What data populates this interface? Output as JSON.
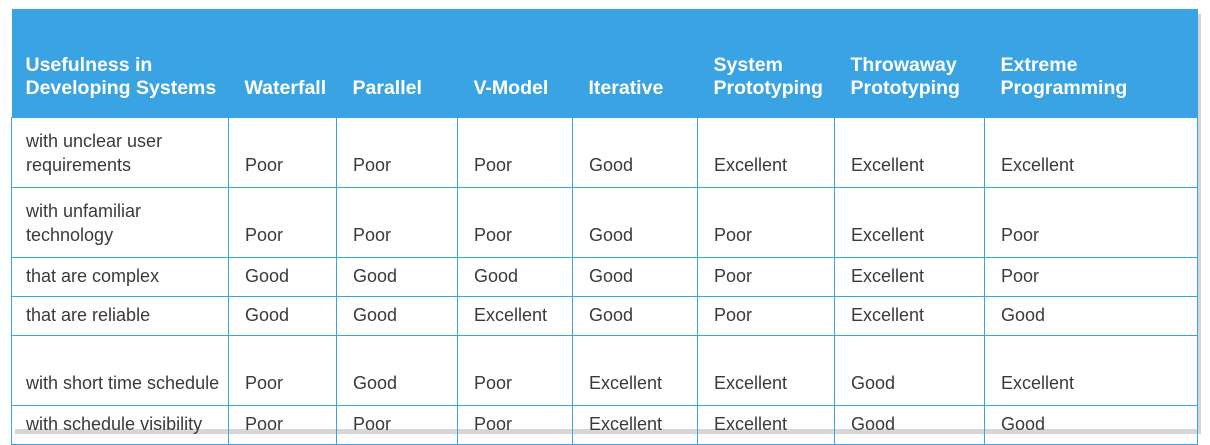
{
  "table": {
    "header": {
      "corner": "Usefulness in Developing Systems",
      "columns": [
        "Waterfall",
        "Parallel",
        "V-Model",
        "Iterative",
        "System Prototyping",
        "Throwaway Prototyping",
        "Extreme Programming"
      ]
    },
    "rows": [
      {
        "label": "with unclear user requirements",
        "values": [
          "Poor",
          "Poor",
          "Poor",
          "Good",
          "Excellent",
          "Excellent",
          "Excellent"
        ]
      },
      {
        "label": "with unfamiliar technology",
        "values": [
          "Poor",
          "Poor",
          "Poor",
          "Good",
          "Poor",
          "Excellent",
          "Poor"
        ]
      },
      {
        "label": "that are complex",
        "values": [
          "Good",
          "Good",
          "Good",
          "Good",
          "Poor",
          "Excellent",
          "Poor"
        ]
      },
      {
        "label": "that are reliable",
        "values": [
          "Good",
          "Good",
          "Excellent",
          "Good",
          "Poor",
          "Excellent",
          "Good"
        ]
      },
      {
        "label": "with short time schedule",
        "values": [
          "Poor",
          "Good",
          "Poor",
          "Excellent",
          "Excellent",
          "Good",
          "Excellent"
        ]
      },
      {
        "label": "with schedule visibility",
        "values": [
          "Poor",
          "Poor",
          "Poor",
          "Excellent",
          "Excellent",
          "Good",
          "Good"
        ]
      }
    ]
  },
  "colors": {
    "header_background": "#3aa3e3",
    "header_text": "#ffffff",
    "grid_lines": "#3aa3e3",
    "body_text": "#3a3a3a"
  }
}
